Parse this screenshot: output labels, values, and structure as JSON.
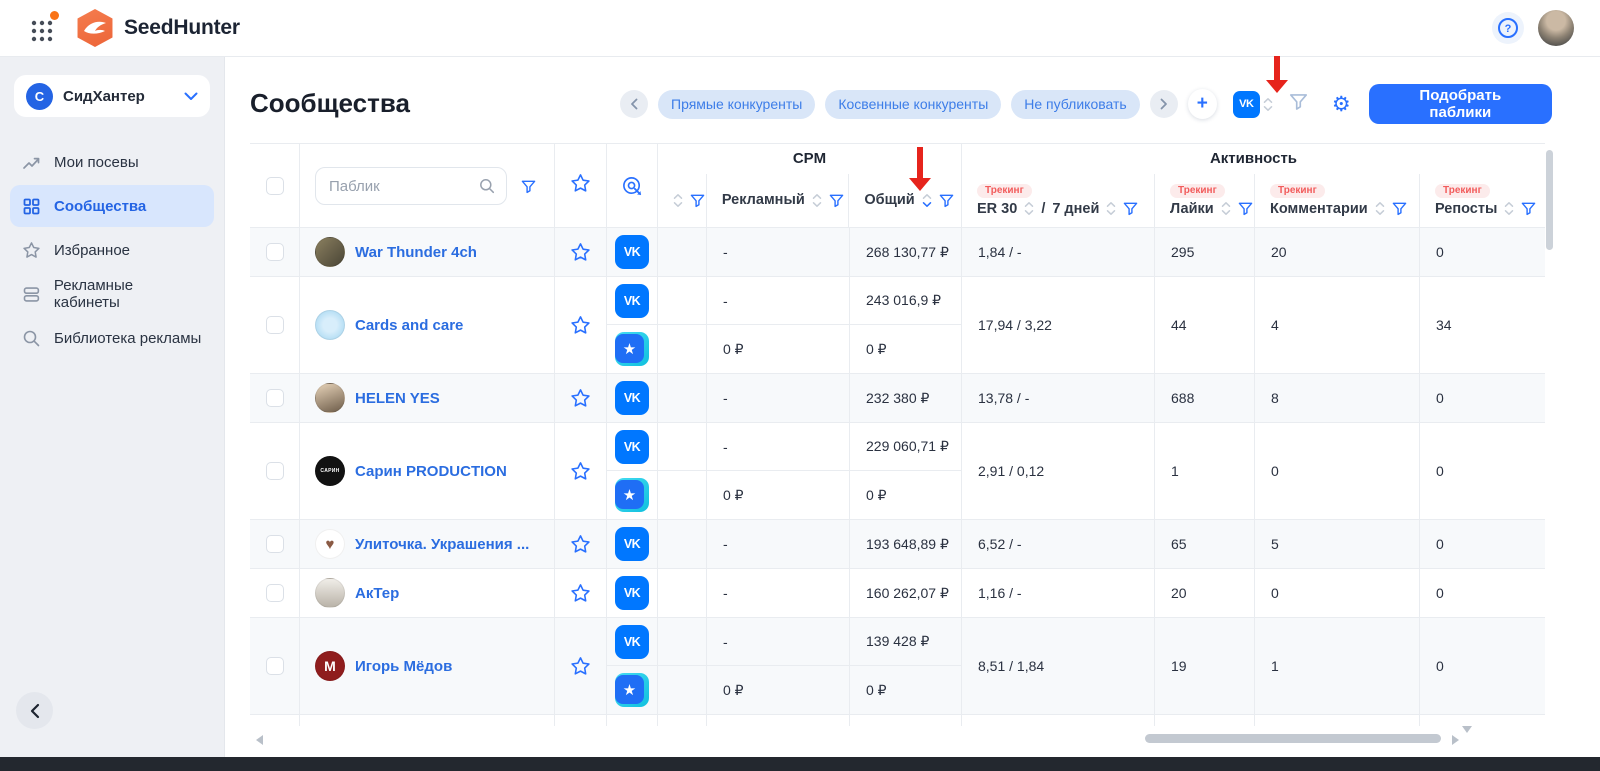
{
  "topbar": {
    "app_name": "SeedHunter",
    "help_glyph": "?"
  },
  "sidebar": {
    "workspace_initial": "С",
    "workspace_name": "СидХантер",
    "items": [
      {
        "label": "Мои посевы",
        "icon": "seeding-trend-icon",
        "active": false
      },
      {
        "label": "Сообщества",
        "icon": "communities-grid-icon",
        "active": true
      },
      {
        "label": "Избранное",
        "icon": "favorites-star-icon",
        "active": false
      },
      {
        "label": "Рекламные кабинеты",
        "icon": "ad-cabinets-icon",
        "active": false
      },
      {
        "label": "Библиотека рекламы",
        "icon": "ads-library-search-icon",
        "active": false
      }
    ]
  },
  "page": {
    "title": "Сообщества"
  },
  "toolbar": {
    "chips": [
      "Прямые конкуренты",
      "Косвенные конкуренты",
      "Не публиковать"
    ],
    "primary_button": "Подобрать паблики",
    "vk_sort_icon": "vk-icon",
    "icons": [
      "chevron-left-icon",
      "chevron-right-icon",
      "plus-icon",
      "filter-funnel-icon",
      "gear-icon"
    ]
  },
  "table": {
    "search_placeholder": "Паблик",
    "groups": {
      "cpm": "CPM",
      "activity": "Активность"
    },
    "columns": {
      "ad": "Рекламный",
      "total": "Общий",
      "er": "ER 30",
      "er_sep": "/",
      "er_days": "7 дней",
      "likes": "Лайки",
      "comments": "Комментарии",
      "reposts": "Репосты",
      "tracking": "Трекинг"
    },
    "sorted_column": "Общий",
    "sort_direction": "desc",
    "rows": [
      {
        "name": "War Thunder 4ch",
        "shaded": true,
        "avatar": {
          "bg": "linear-gradient(135deg,#8a7f5f,#4a4536)",
          "glyph": "",
          "fg": "#fff"
        },
        "platforms": [
          {
            "type": "vk",
            "ad": "-",
            "total": "268 130,77 ₽"
          }
        ],
        "er": "1,84 / -",
        "likes": "295",
        "comments": "20",
        "reposts": "0"
      },
      {
        "name": "Cards and care",
        "shaded": false,
        "avatar": {
          "bg": "radial-gradient(circle,#d8eefb 35%,#9fd4f0)",
          "glyph": "",
          "fg": "#fff"
        },
        "platforms": [
          {
            "type": "vk",
            "ad": "-",
            "total": "243 016,9 ₽"
          },
          {
            "type": "star",
            "ad": "0 ₽",
            "total": "0 ₽"
          }
        ],
        "er": "17,94 / 3,22",
        "likes": "44",
        "comments": "4",
        "reposts": "34"
      },
      {
        "name": "HELEN YES",
        "shaded": true,
        "avatar": {
          "bg": "linear-gradient(160deg,#e6d2b8,#6d5c49)",
          "glyph": "",
          "fg": "#fff"
        },
        "platforms": [
          {
            "type": "vk",
            "ad": "-",
            "total": "232 380 ₽"
          }
        ],
        "er": "13,78 / -",
        "likes": "688",
        "comments": "8",
        "reposts": "0"
      },
      {
        "name": "Сарин PRODUCTION",
        "shaded": false,
        "avatar": {
          "bg": "#121212",
          "glyph": "САРИН",
          "fg": "#fff"
        },
        "platforms": [
          {
            "type": "vk",
            "ad": "-",
            "total": "229 060,71 ₽"
          },
          {
            "type": "star",
            "ad": "0 ₽",
            "total": "0 ₽"
          }
        ],
        "er": "2,91 / 0,12",
        "likes": "1",
        "comments": "0",
        "reposts": "0"
      },
      {
        "name": "Улиточка. Украшения ...",
        "shaded": true,
        "avatar": {
          "bg": "#ffffff",
          "glyph": "♥",
          "fg": "#8a5a44"
        },
        "platforms": [
          {
            "type": "vk",
            "ad": "-",
            "total": "193 648,89 ₽"
          }
        ],
        "er": "6,52 / -",
        "likes": "65",
        "comments": "5",
        "reposts": "0"
      },
      {
        "name": "АкТер",
        "shaded": false,
        "avatar": {
          "bg": "linear-gradient(180deg,#f0ede8,#b9b3a8)",
          "glyph": "",
          "fg": "#666"
        },
        "platforms": [
          {
            "type": "vk",
            "ad": "-",
            "total": "160 262,07 ₽"
          }
        ],
        "er": "1,16 / -",
        "likes": "20",
        "comments": "0",
        "reposts": "0"
      },
      {
        "name": "Игорь Мёдов",
        "shaded": true,
        "avatar": {
          "bg": "#8f1d1d",
          "glyph": "М",
          "fg": "#fff"
        },
        "platforms": [
          {
            "type": "vk",
            "ad": "-",
            "total": "139 428 ₽"
          },
          {
            "type": "star",
            "ad": "0 ₽",
            "total": "0 ₽"
          }
        ],
        "er": "8,51 / 1,84",
        "likes": "19",
        "comments": "1",
        "reposts": "0"
      }
    ]
  },
  "colors": {
    "primary": "#2970FF",
    "vk": "#0077FF",
    "chip_bg": "#D9E6F8",
    "chip_text": "#3D7DE8",
    "tracking_text": "#F25C5C",
    "tracking_bg": "#FCEBEB",
    "annotation_arrow": "#E6241C",
    "row_shaded": "#F7F9FB",
    "sidebar_bg": "#EEF0F4",
    "active_item_bg": "#D8E6FD"
  }
}
